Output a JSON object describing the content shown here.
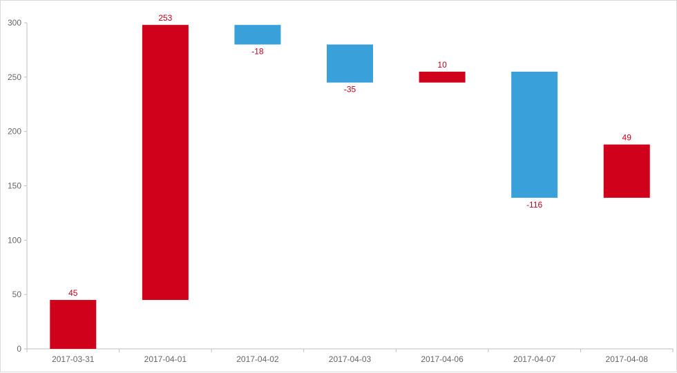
{
  "chart_data": {
    "type": "bar",
    "subtype": "waterfall",
    "title": "",
    "xlabel": "",
    "ylabel": "",
    "ylim": [
      0,
      300
    ],
    "yticks": [
      0,
      50,
      100,
      150,
      200,
      250,
      300
    ],
    "grid": false,
    "legend": "none",
    "categories": [
      "2017-03-31",
      "2017-04-01",
      "2017-04-02",
      "2017-04-03",
      "2017-04-06",
      "2017-04-07",
      "2017-04-08"
    ],
    "values": [
      45,
      253,
      -18,
      -35,
      10,
      -116,
      49
    ],
    "value_labels": [
      "45",
      "253",
      "-18",
      "-35",
      "10",
      "-116",
      "49"
    ],
    "colors": {
      "increase": "#d0021b",
      "decrease": "#3aa0da",
      "axis": "#bfbfbf",
      "tick": "#666666"
    }
  }
}
